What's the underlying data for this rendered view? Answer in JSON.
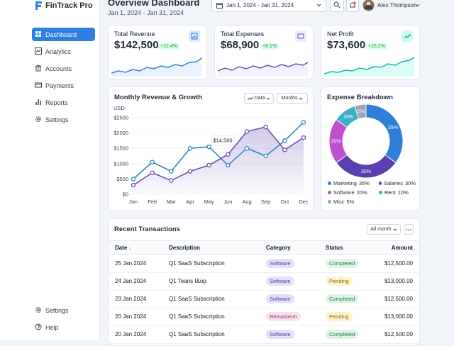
{
  "sidebar": {
    "brand": "FinTrack Pro",
    "nav": [
      "Dashboard",
      "Analytics",
      "Accounts",
      "Payments",
      "Reports",
      "Settings"
    ],
    "footer": [
      "Settings",
      "Help"
    ]
  },
  "header": {
    "title": "Overview Dashboard",
    "subtitle": "Jan 1, 2024 - Jan 31, 2024",
    "date_range": "Jan 1, 2024 - Jan 31, 2024",
    "user": "Alex Thompson"
  },
  "kpis": [
    {
      "label": "Total Revenue",
      "value": "$142,500",
      "change": "+12.4%"
    },
    {
      "label": "Total Expenses",
      "value": "$68,900",
      "change": "+8.1%"
    },
    {
      "label": "Net Profit",
      "value": "$73,600",
      "change": "+15.2%"
    }
  ],
  "chart_data": [
    {
      "type": "line",
      "title": "Monthly Revenue & Growth",
      "ylabel": "USD",
      "controls": [
        "Data",
        "Months"
      ],
      "categories": [
        "Jan",
        "Feb",
        "Mar",
        "Apr",
        "May",
        "Jun",
        "Aug",
        "Sep",
        "Oct",
        "Dec"
      ],
      "series": [
        {
          "color": "#2e86c1",
          "values": [
            500,
            1050,
            750,
            1500,
            1550,
            950,
            1500,
            1250,
            1750,
            2350
          ]
        },
        {
          "color": "#6a4fb5",
          "fill": true,
          "values": [
            300,
            700,
            450,
            750,
            950,
            1300,
            2050,
            2200,
            1450,
            1850
          ]
        }
      ],
      "ylim": [
        0,
        2500
      ],
      "yticks": [
        {
          "value": 0,
          "label": "$0"
        },
        {
          "value": 500,
          "label": "$500"
        },
        {
          "value": 1000,
          "label": "$1000"
        },
        {
          "value": 1500,
          "label": "$1500"
        },
        {
          "value": 2000,
          "label": "$2000"
        },
        {
          "value": 2500,
          "label": "$2500"
        }
      ],
      "annotation": "$14,500",
      "grid": true
    },
    {
      "type": "pie",
      "title": "Expense Breakdown",
      "categories": [
        "Marketing",
        "Salaries",
        "Software",
        "Rent",
        "Misc"
      ],
      "values": [
        35,
        30,
        20,
        10,
        5
      ],
      "value_labels": [
        "35%",
        "30%",
        "20%",
        "10%",
        "5%"
      ],
      "colors": [
        "#2f7fd8",
        "#5b3fb0",
        "#c04fd0",
        "#3bb0c9",
        "#9ca3af"
      ]
    }
  ],
  "transactions": {
    "title": "Recent Transactions",
    "filter": "All month",
    "columns": [
      "Date",
      "Description",
      "Category",
      "Status",
      "Amount"
    ],
    "rows": [
      [
        "25 Jan 2024",
        "Q1 SaaS Subscription",
        "Software",
        "Completed",
        "$12,500.00"
      ],
      [
        "24 Jan 2024",
        "Q1 Teans I&op",
        "Software",
        "Pending",
        "$13,000.00"
      ],
      [
        "23 Jan 2024",
        "Q1 SaaS Subscription",
        "Software",
        "Completed",
        "$12,500.00"
      ],
      [
        "20 Jan 2024",
        "Q1 SaaS Subscription",
        "Remasterm",
        "Pending",
        "$13,000.00"
      ],
      [
        "20 Jan 2024",
        "Q1 SaaS Subscription",
        "Software",
        "Completed",
        "$12,500.00"
      ]
    ]
  }
}
